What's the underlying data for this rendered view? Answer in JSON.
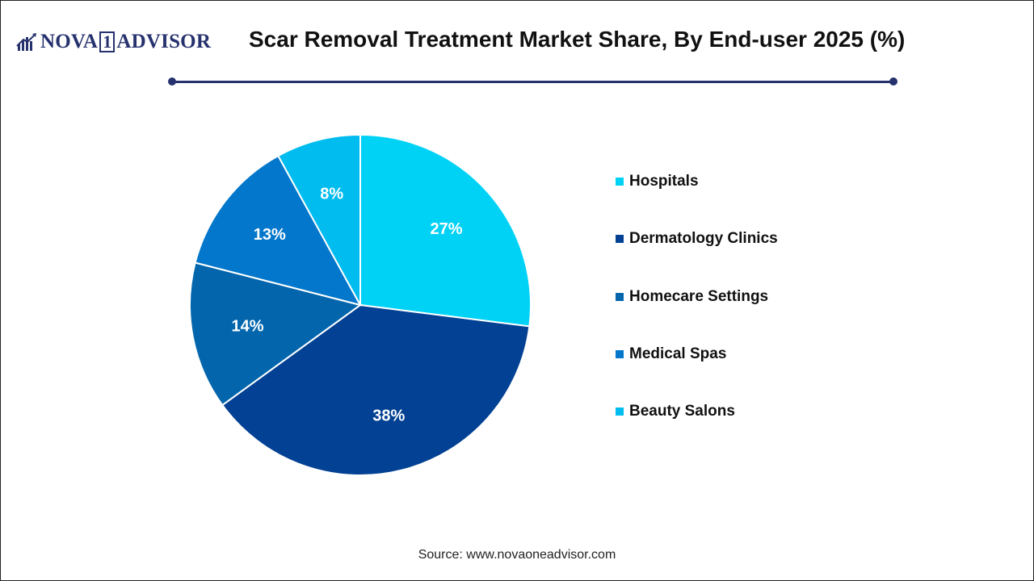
{
  "brand": {
    "name_left": "NOVA",
    "name_mid": "1",
    "name_right": "ADVISOR"
  },
  "header": {
    "title": "Scar Removal Treatment Market Share, By End-user 2025 (%)"
  },
  "chart_data": {
    "type": "pie",
    "title": "Scar Removal Treatment Market Share, By End-user 2025 (%)",
    "categories": [
      "Hospitals",
      "Dermatology Clinics",
      "Homecare Settings",
      "Medical Spas",
      "Beauty Salons"
    ],
    "values": [
      27,
      38,
      14,
      13,
      8
    ],
    "labels": [
      "27%",
      "38%",
      "14%",
      "13%",
      "8%"
    ],
    "colors": [
      "#00d2f6",
      "#024193",
      "#0366ad",
      "#0277cb",
      "#00bcef"
    ],
    "start": "12 o'clock",
    "direction": "clockwise",
    "legend_position": "right"
  },
  "legend": {
    "items": [
      {
        "label": "Hospitals",
        "color": "#00d2f6"
      },
      {
        "label": "Dermatology Clinics",
        "color": "#024193"
      },
      {
        "label": "Homecare Settings",
        "color": "#0366ad"
      },
      {
        "label": "Medical Spas",
        "color": "#0277cb"
      },
      {
        "label": "Beauty Salons",
        "color": "#00bcef"
      }
    ]
  },
  "footer": {
    "source": "Source: www.novaoneadvisor.com"
  }
}
